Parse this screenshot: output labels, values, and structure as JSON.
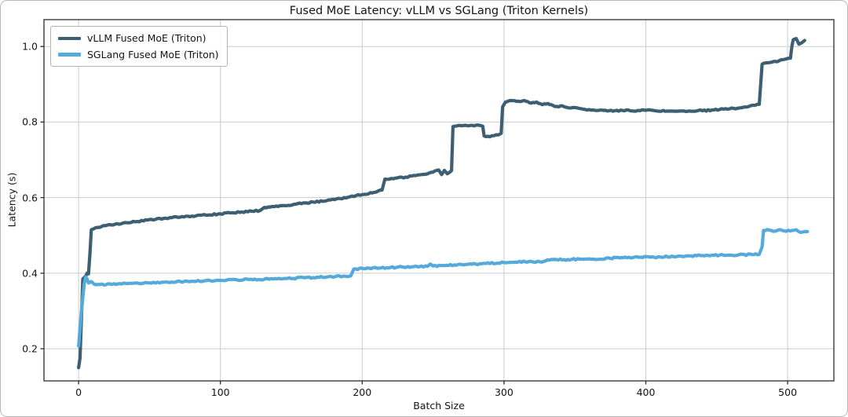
{
  "chart_data": {
    "type": "line",
    "title": "Fused MoE Latency: vLLM vs SGLang (Triton Kernels)",
    "xlabel": "Batch Size",
    "ylabel": "Latency (s)",
    "xlim": [
      -24.4,
      532.6
    ],
    "ylim": [
      0.115,
      1.071
    ],
    "xticks": {
      "values": [
        0,
        100,
        200,
        300,
        400,
        500
      ],
      "labels": [
        "0",
        "100",
        "200",
        "300",
        "400",
        "500"
      ]
    },
    "yticks": {
      "values": [
        0.2,
        0.4,
        0.6,
        0.8,
        1.0
      ],
      "labels": [
        "0.2",
        "0.4",
        "0.6",
        "0.8",
        "1.0"
      ]
    },
    "grid": true,
    "legend_position": "upper-left",
    "colors": {
      "grid": "#cccccc",
      "spine": "#2b2b2b",
      "text": "#141414",
      "background": "#ffffff"
    },
    "series": [
      {
        "key": "vllm",
        "name": "vLLM Fused MoE (Triton)",
        "color": "#3e5f71",
        "points": [
          [
            0,
            0.15
          ],
          [
            1,
            0.175
          ],
          [
            2,
            0.28
          ],
          [
            3,
            0.385
          ],
          [
            5,
            0.392
          ],
          [
            6,
            0.4
          ],
          [
            7,
            0.398
          ],
          [
            8,
            0.45
          ],
          [
            9,
            0.515
          ],
          [
            12,
            0.52
          ],
          [
            20,
            0.527
          ],
          [
            40,
            0.536
          ],
          [
            60,
            0.545
          ],
          [
            80,
            0.551
          ],
          [
            100,
            0.557
          ],
          [
            115,
            0.562
          ],
          [
            128,
            0.566
          ],
          [
            131,
            0.574
          ],
          [
            145,
            0.579
          ],
          [
            160,
            0.586
          ],
          [
            175,
            0.592
          ],
          [
            190,
            0.601
          ],
          [
            200,
            0.608
          ],
          [
            210,
            0.615
          ],
          [
            214,
            0.62
          ],
          [
            216,
            0.649
          ],
          [
            222,
            0.65
          ],
          [
            235,
            0.657
          ],
          [
            246,
            0.663
          ],
          [
            251,
            0.67
          ],
          [
            254,
            0.673
          ],
          [
            256,
            0.661
          ],
          [
            258,
            0.672
          ],
          [
            260,
            0.663
          ],
          [
            262,
            0.668
          ],
          [
            263,
            0.672
          ],
          [
            264,
            0.788
          ],
          [
            268,
            0.791
          ],
          [
            275,
            0.79
          ],
          [
            283,
            0.791
          ],
          [
            285,
            0.789
          ],
          [
            286,
            0.763
          ],
          [
            290,
            0.761
          ],
          [
            296,
            0.766
          ],
          [
            298,
            0.77
          ],
          [
            299,
            0.84
          ],
          [
            301,
            0.853
          ],
          [
            305,
            0.857
          ],
          [
            310,
            0.855
          ],
          [
            314,
            0.857
          ],
          [
            318,
            0.851
          ],
          [
            323,
            0.853
          ],
          [
            327,
            0.846
          ],
          [
            331,
            0.849
          ],
          [
            336,
            0.841
          ],
          [
            341,
            0.843
          ],
          [
            347,
            0.837
          ],
          [
            353,
            0.836
          ],
          [
            360,
            0.833
          ],
          [
            370,
            0.831
          ],
          [
            385,
            0.83
          ],
          [
            400,
            0.831
          ],
          [
            415,
            0.829
          ],
          [
            428,
            0.828
          ],
          [
            440,
            0.83
          ],
          [
            452,
            0.833
          ],
          [
            462,
            0.836
          ],
          [
            470,
            0.84
          ],
          [
            477,
            0.844
          ],
          [
            480,
            0.847
          ],
          [
            481,
            0.9
          ],
          [
            482,
            0.953
          ],
          [
            486,
            0.957
          ],
          [
            490,
            0.96
          ],
          [
            494,
            0.962
          ],
          [
            498,
            0.966
          ],
          [
            502,
            0.969
          ],
          [
            503,
            1.0
          ],
          [
            504,
            1.018
          ],
          [
            506,
            1.021
          ],
          [
            508,
            1.006
          ],
          [
            510,
            1.01
          ],
          [
            512,
            1.016
          ]
        ]
      },
      {
        "key": "sglang",
        "name": "SGLang Fused MoE (Triton)",
        "color": "#56a9db",
        "points": [
          [
            0,
            0.207
          ],
          [
            2,
            0.3
          ],
          [
            4,
            0.372
          ],
          [
            5,
            0.39
          ],
          [
            6,
            0.385
          ],
          [
            7,
            0.374
          ],
          [
            9,
            0.378
          ],
          [
            11,
            0.371
          ],
          [
            15,
            0.37
          ],
          [
            25,
            0.372
          ],
          [
            40,
            0.374
          ],
          [
            60,
            0.376
          ],
          [
            80,
            0.379
          ],
          [
            100,
            0.381
          ],
          [
            120,
            0.383
          ],
          [
            140,
            0.385
          ],
          [
            160,
            0.388
          ],
          [
            175,
            0.39
          ],
          [
            188,
            0.392
          ],
          [
            192,
            0.393
          ],
          [
            194,
            0.411
          ],
          [
            205,
            0.413
          ],
          [
            220,
            0.415
          ],
          [
            235,
            0.417
          ],
          [
            246,
            0.418
          ],
          [
            248,
            0.424
          ],
          [
            250,
            0.419
          ],
          [
            265,
            0.422
          ],
          [
            280,
            0.424
          ],
          [
            300,
            0.428
          ],
          [
            315,
            0.43
          ],
          [
            328,
            0.431
          ],
          [
            333,
            0.436
          ],
          [
            345,
            0.436
          ],
          [
            360,
            0.438
          ],
          [
            375,
            0.439
          ],
          [
            380,
            0.442
          ],
          [
            395,
            0.442
          ],
          [
            410,
            0.443
          ],
          [
            425,
            0.445
          ],
          [
            440,
            0.447
          ],
          [
            452,
            0.448
          ],
          [
            465,
            0.448
          ],
          [
            475,
            0.449
          ],
          [
            480,
            0.45
          ],
          [
            482,
            0.47
          ],
          [
            483,
            0.513
          ],
          [
            487,
            0.514
          ],
          [
            491,
            0.511
          ],
          [
            495,
            0.515
          ],
          [
            499,
            0.511
          ],
          [
            503,
            0.513
          ],
          [
            506,
            0.515
          ],
          [
            509,
            0.508
          ],
          [
            512,
            0.51
          ],
          [
            514,
            0.51
          ]
        ]
      }
    ]
  }
}
